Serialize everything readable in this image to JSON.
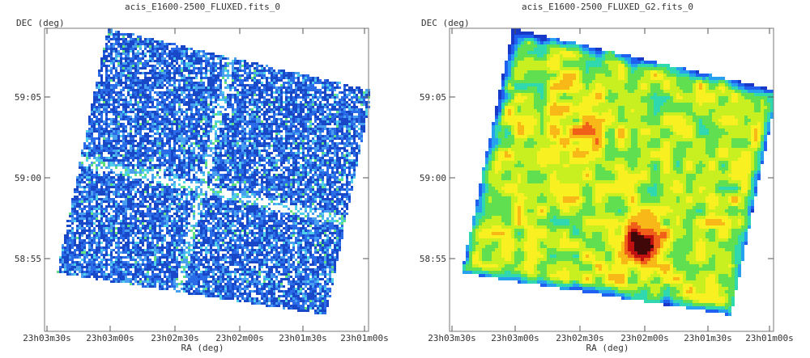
{
  "chart_data": [
    {
      "type": "heatmap",
      "title": "acis_E1600-2500_FLUXED.fits_0",
      "xlabel": "RA (deg)",
      "ylabel": "DEC (deg)",
      "x_ticks": [
        "23h03m30s",
        "23h03m00s",
        "23h02m30s",
        "23h02m00s",
        "23h01m30s",
        "23h01m00s"
      ],
      "y_ticks": [
        "59:05",
        "59:00",
        "58:55"
      ],
      "style": "noisy-unsmoothed",
      "colormap": [
        "#1848c8",
        "#2a6be8",
        "#4aa0f0",
        "#50d0e8",
        "#60e080",
        "#ffffff"
      ]
    },
    {
      "type": "heatmap",
      "title": "acis_E1600-2500_FLUXED_G2.fits_0",
      "xlabel": "RA (deg)",
      "ylabel": "DEC (deg)",
      "x_ticks": [
        "23h03m30s",
        "23h03m00s",
        "23h02m30s",
        "23h02m00s",
        "23h01m30s",
        "23h01m00s"
      ],
      "y_ticks": [
        "59:05",
        "59:00",
        "58:55"
      ],
      "style": "gaussian-smoothed",
      "colormap": [
        "#1838c8",
        "#2060f0",
        "#28a0f0",
        "#30d8b0",
        "#60e050",
        "#c8f020",
        "#f8f020",
        "#f8b818",
        "#f06018",
        "#c01010",
        "#400808"
      ]
    }
  ]
}
